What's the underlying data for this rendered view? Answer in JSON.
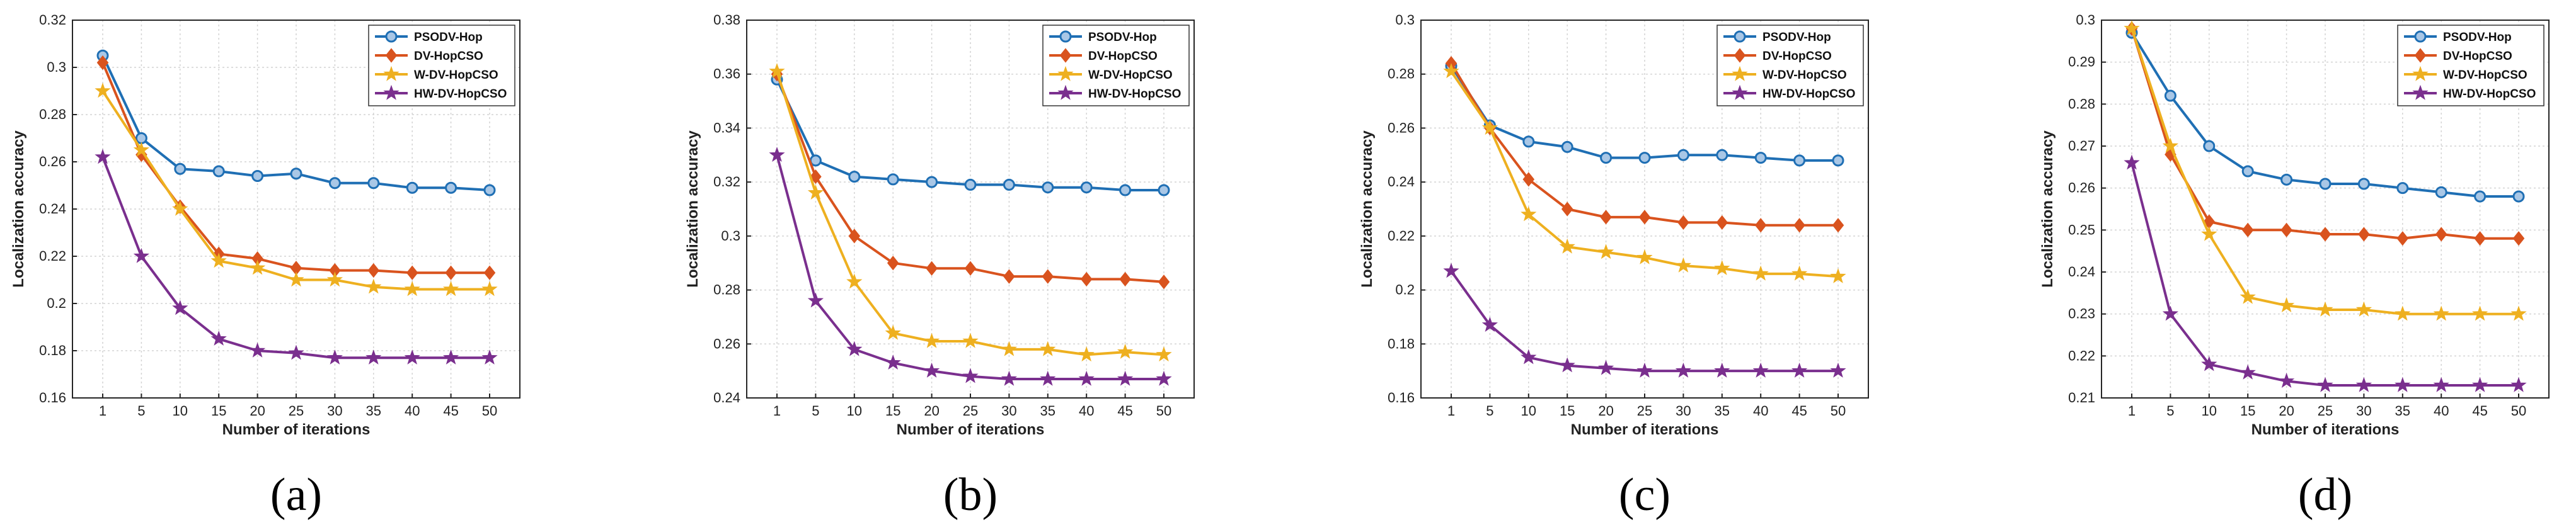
{
  "chart_data": [
    {
      "type": "line",
      "caption": "(a)",
      "xlabel": "Number of iterations",
      "ylabel": "Localization accuracy",
      "categories": [
        "1",
        "5",
        "10",
        "15",
        "20",
        "25",
        "30",
        "35",
        "40",
        "45",
        "50"
      ],
      "ylim": [
        0.16,
        0.32
      ],
      "yticks": [
        0.16,
        0.18,
        0.2,
        0.22,
        0.24,
        0.26,
        0.28,
        0.3,
        0.32
      ],
      "ytick_labels": [
        "0.16",
        "0.18",
        "0.2",
        "0.22",
        "0.24",
        "0.26",
        "0.28",
        "0.3",
        "0.32"
      ],
      "grid": true,
      "legend_position": "top-right",
      "series": [
        {
          "name": "PSODV-Hop",
          "values": [
            0.305,
            0.27,
            0.257,
            0.256,
            0.254,
            0.255,
            0.251,
            0.251,
            0.249,
            0.249,
            0.248
          ]
        },
        {
          "name": "DV-HopCSO",
          "values": [
            0.302,
            0.263,
            0.241,
            0.221,
            0.219,
            0.215,
            0.214,
            0.214,
            0.213,
            0.213,
            0.213
          ]
        },
        {
          "name": "W-DV-HopCSO",
          "values": [
            0.29,
            0.265,
            0.24,
            0.218,
            0.215,
            0.21,
            0.21,
            0.207,
            0.206,
            0.206,
            0.206
          ]
        },
        {
          "name": "HW-DV-HopCSO",
          "values": [
            0.262,
            0.22,
            0.198,
            0.185,
            0.18,
            0.179,
            0.177,
            0.177,
            0.177,
            0.177,
            0.177
          ]
        }
      ]
    },
    {
      "type": "line",
      "caption": "(b)",
      "xlabel": "Number of iterations",
      "ylabel": "Localization accuracy",
      "categories": [
        "1",
        "5",
        "10",
        "15",
        "20",
        "25",
        "30",
        "35",
        "40",
        "45",
        "50"
      ],
      "ylim": [
        0.24,
        0.38
      ],
      "yticks": [
        0.24,
        0.26,
        0.28,
        0.3,
        0.32,
        0.34,
        0.36,
        0.38
      ],
      "ytick_labels": [
        "0.24",
        "0.26",
        "0.28",
        "0.3",
        "0.32",
        "0.34",
        "0.36",
        "0.38"
      ],
      "grid": true,
      "legend_position": "top-right",
      "series": [
        {
          "name": "PSODV-Hop",
          "values": [
            0.358,
            0.328,
            0.322,
            0.321,
            0.32,
            0.319,
            0.319,
            0.318,
            0.318,
            0.317,
            0.317
          ]
        },
        {
          "name": "DV-HopCSO",
          "values": [
            0.36,
            0.322,
            0.3,
            0.29,
            0.288,
            0.288,
            0.285,
            0.285,
            0.284,
            0.284,
            0.283
          ]
        },
        {
          "name": "W-DV-HopCSO",
          "values": [
            0.361,
            0.316,
            0.283,
            0.264,
            0.261,
            0.261,
            0.258,
            0.258,
            0.256,
            0.257,
            0.256
          ]
        },
        {
          "name": "HW-DV-HopCSO",
          "values": [
            0.33,
            0.276,
            0.258,
            0.253,
            0.25,
            0.248,
            0.247,
            0.247,
            0.247,
            0.247,
            0.247
          ]
        }
      ]
    },
    {
      "type": "line",
      "caption": "(c)",
      "xlabel": "Number of iterations",
      "ylabel": "Localization accuracy",
      "categories": [
        "1",
        "5",
        "10",
        "15",
        "20",
        "25",
        "30",
        "35",
        "40",
        "45",
        "50"
      ],
      "ylim": [
        0.16,
        0.3
      ],
      "yticks": [
        0.16,
        0.18,
        0.2,
        0.22,
        0.24,
        0.26,
        0.28,
        0.3
      ],
      "ytick_labels": [
        "0.16",
        "0.18",
        "0.2",
        "0.22",
        "0.24",
        "0.26",
        "0.28",
        "0.3"
      ],
      "grid": true,
      "legend_position": "top-right",
      "series": [
        {
          "name": "PSODV-Hop",
          "values": [
            0.283,
            0.261,
            0.255,
            0.253,
            0.249,
            0.249,
            0.25,
            0.25,
            0.249,
            0.248,
            0.248
          ]
        },
        {
          "name": "DV-HopCSO",
          "values": [
            0.284,
            0.26,
            0.241,
            0.23,
            0.227,
            0.227,
            0.225,
            0.225,
            0.224,
            0.224,
            0.224
          ]
        },
        {
          "name": "W-DV-HopCSO",
          "values": [
            0.281,
            0.26,
            0.228,
            0.216,
            0.214,
            0.212,
            0.209,
            0.208,
            0.206,
            0.206,
            0.205
          ]
        },
        {
          "name": "HW-DV-HopCSO",
          "values": [
            0.207,
            0.187,
            0.175,
            0.172,
            0.171,
            0.17,
            0.17,
            0.17,
            0.17,
            0.17,
            0.17
          ]
        }
      ]
    },
    {
      "type": "line",
      "caption": "(d)",
      "xlabel": "Number of iterations",
      "ylabel": "Localization accuracy",
      "categories": [
        "1",
        "5",
        "10",
        "15",
        "20",
        "25",
        "30",
        "35",
        "40",
        "45",
        "50"
      ],
      "ylim": [
        0.21,
        0.3
      ],
      "yticks": [
        0.21,
        0.22,
        0.23,
        0.24,
        0.25,
        0.26,
        0.27,
        0.28,
        0.29,
        0.3
      ],
      "ytick_labels": [
        "0.21",
        "0.22",
        "0.23",
        "0.24",
        "0.25",
        "0.26",
        "0.27",
        "0.28",
        "0.29",
        "0.3"
      ],
      "grid": true,
      "legend_position": "top-right",
      "series": [
        {
          "name": "PSODV-Hop",
          "values": [
            0.297,
            0.282,
            0.27,
            0.264,
            0.262,
            0.261,
            0.261,
            0.26,
            0.259,
            0.258,
            0.258
          ]
        },
        {
          "name": "DV-HopCSO",
          "values": [
            0.298,
            0.268,
            0.252,
            0.25,
            0.25,
            0.249,
            0.249,
            0.248,
            0.249,
            0.248,
            0.248
          ]
        },
        {
          "name": "W-DV-HopCSO",
          "values": [
            0.298,
            0.27,
            0.249,
            0.234,
            0.232,
            0.231,
            0.231,
            0.23,
            0.23,
            0.23,
            0.23
          ]
        },
        {
          "name": "HW-DV-HopCSO",
          "values": [
            0.266,
            0.23,
            0.218,
            0.216,
            0.214,
            0.213,
            0.213,
            0.213,
            0.213,
            0.213,
            0.213
          ]
        }
      ]
    }
  ],
  "series_style": {
    "PSODV-Hop": {
      "color": "#1f6fb4",
      "marker": "circle"
    },
    "DV-HopCSO": {
      "color": "#d9531e",
      "marker": "diamond"
    },
    "W-DV-HopCSO": {
      "color": "#eeb020",
      "marker": "star"
    },
    "HW-DV-HopCSO": {
      "color": "#7a2f8e",
      "marker": "star"
    }
  }
}
